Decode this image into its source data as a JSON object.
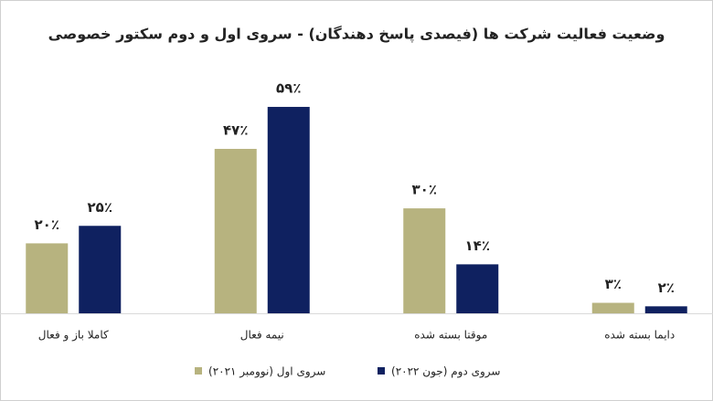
{
  "chart_data": {
    "type": "bar",
    "title": "وضعیت فعالیت شرکت ها (فیصدی پاسخ دهندگان) - سروی اول و دوم سکتور خصوصی",
    "categories": [
      "کاملا باز و فعال",
      "نیمه فعال",
      "موقتا بسته شده",
      "دایما بسته شده"
    ],
    "series": [
      {
        "name": "سروی اول (نوومبر ۲۰۲۱)",
        "color": "#b7b37f",
        "values": [
          20,
          47,
          30,
          3
        ],
        "value_labels": [
          "۲۰٪",
          "۴۷٪",
          "۳۰٪",
          "۳٪"
        ]
      },
      {
        "name": "سروی دوم (جون ۲۰۲۲)",
        "color": "#0f2160",
        "values": [
          25,
          59,
          14,
          2
        ],
        "value_labels": [
          "۲۵٪",
          "۵۹٪",
          "۱۴٪",
          "۲٪"
        ]
      }
    ]
  }
}
